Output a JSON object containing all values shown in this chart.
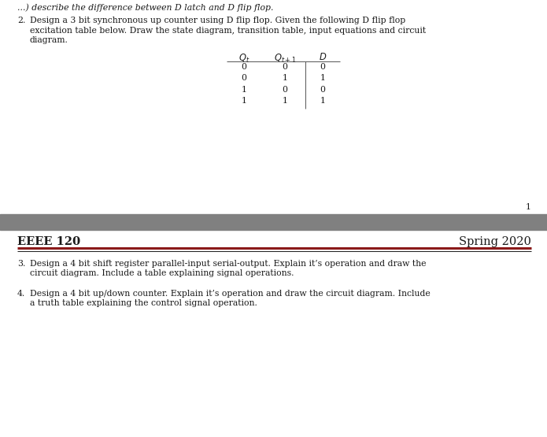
{
  "bg_color": "#ffffff",
  "separator_bg": "#808080",
  "header_line_color": "#8b1a1a",
  "header_line2_color": "#1a1a1a",
  "text_color": "#1a1a1a",
  "table_line_color": "#555555",
  "item2_text_line1": "Design a 3 bit synchronous up counter using D flip flop. Given the following D flip flop",
  "item2_text_line2": "excitation table below. Draw the state diagram, transition table, input equations and circuit",
  "item2_text_line3": "diagram.",
  "table_data": [
    [
      "0",
      "0",
      "0"
    ],
    [
      "0",
      "1",
      "1"
    ],
    [
      "1",
      "0",
      "0"
    ],
    [
      "1",
      "1",
      "1"
    ]
  ],
  "page_number": "1",
  "footer_left": "EEEE 120",
  "footer_right": "Spring 2020",
  "item3_line1": "Design a 4 bit shift register parallel-input serial-output. Explain it’s operation and draw the",
  "item3_line2": "circuit diagram. Include a table explaining signal operations.",
  "item4_line1": "Design a 4 bit up/down counter. Explain it’s operation and draw the circuit diagram. Include",
  "item4_line2": "a truth table explaining the control signal operation.",
  "top_partial_text": "...) describe the difference between D latch and D flip flop."
}
